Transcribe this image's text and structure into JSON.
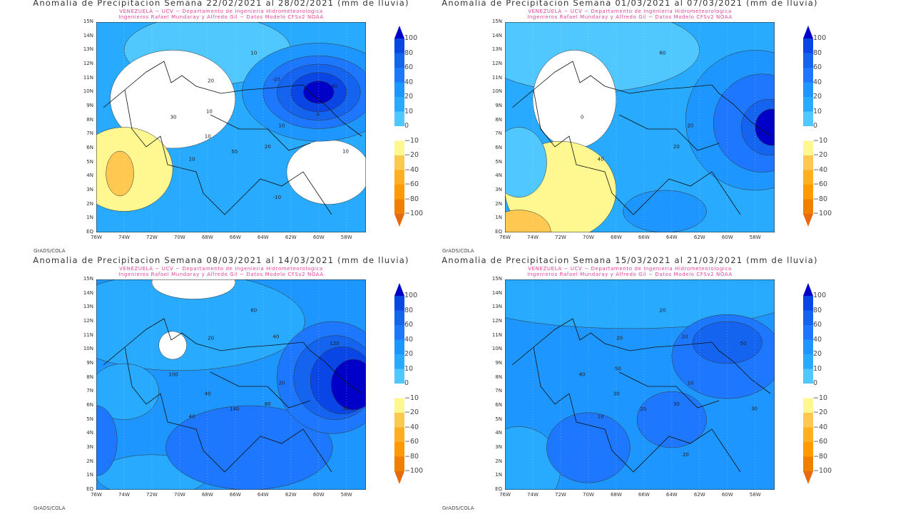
{
  "colorbar": {
    "labels": [
      "100",
      "80",
      "60",
      "40",
      "20",
      "10",
      "0",
      "−10",
      "−20",
      "−40",
      "−60",
      "−80",
      "−100"
    ],
    "colors": [
      "#0000c8",
      "#0a46e6",
      "#1464f0",
      "#1e78ff",
      "#1e96ff",
      "#28aaff",
      "#50c8ff",
      "#ffffff",
      "#fff890",
      "#ffc850",
      "#ffb020",
      "#ff9a00",
      "#f08000",
      "#e86a10"
    ]
  },
  "axes": {
    "lat": [
      "15N",
      "14N",
      "13N",
      "12N",
      "11N",
      "10N",
      "9N",
      "8N",
      "7N",
      "6N",
      "5N",
      "4N",
      "3N",
      "2N",
      "1N",
      "EQ"
    ],
    "lon": [
      "76W",
      "74W",
      "72W",
      "70W",
      "68W",
      "66W",
      "64W",
      "62W",
      "60W",
      "58W"
    ]
  },
  "credit": "GrADS/COLA",
  "chart_data": [
    {
      "type": "heatmap",
      "title": "Anomalia de Precipitacion Semana 22/02/2021 al 28/02/2021 (mm de lluvia)",
      "subtitle1": "VENEZUELA − UCV − Departamento de Ingenieria Hidrometeorologica",
      "subtitle2": "Ingenieros Rafael Mundaray y Alfredo Gil − Datos Modelo CFSv2 NOAA",
      "contour_labels": [
        "10",
        "10",
        "10",
        "20",
        "30",
        "40",
        "50",
        "20",
        "10",
        "10",
        "-20",
        "-10",
        "10",
        "0"
      ]
    },
    {
      "type": "heatmap",
      "title": "Anomalia de Precipitacion Semana 01/03/2021 al 07/03/2021 (mm de lluvia)",
      "subtitle1": "VENEZUELA − UCV − Departamento de Ingenieria Hidrometeorologica",
      "subtitle2": "Ingenieros Rafael Mundaray y Alfredo Gil − Datos Modelo CFSv2 NOAA",
      "contour_labels": [
        "20",
        "40",
        "60",
        "20",
        "0"
      ]
    },
    {
      "type": "heatmap",
      "title": "Anomalia de Precipitacion Semana 08/03/2021 al 14/03/2021 (mm de lluvia)",
      "subtitle1": "VENEZUELA − UCV − Departamento de Ingenieria Hidrometeorologica",
      "subtitle2": "Ingenieros Rafael Mundaray y Alfredo Gil − Datos Modelo CFSv2 NOAA",
      "contour_labels": [
        "20",
        "40",
        "60",
        "80",
        "100",
        "120",
        "140",
        "20",
        "20",
        "40",
        "40"
      ]
    },
    {
      "type": "heatmap",
      "title": "Anomalia de Precipitacion Semana 15/03/2021 al 21/03/2021 (mm de lluvia)",
      "subtitle1": "VENEZUELA − UCV − Departamento de Ingenieria Hidrometeorologica",
      "subtitle2": "Ingenieros Rafael Mundaray y Alfredo Gil − Datos Modelo CFSv2 NOAA",
      "contour_labels": [
        "10",
        "10",
        "20",
        "30",
        "40",
        "50",
        "20",
        "20",
        "30",
        "30",
        "20",
        "20",
        "50"
      ]
    }
  ]
}
